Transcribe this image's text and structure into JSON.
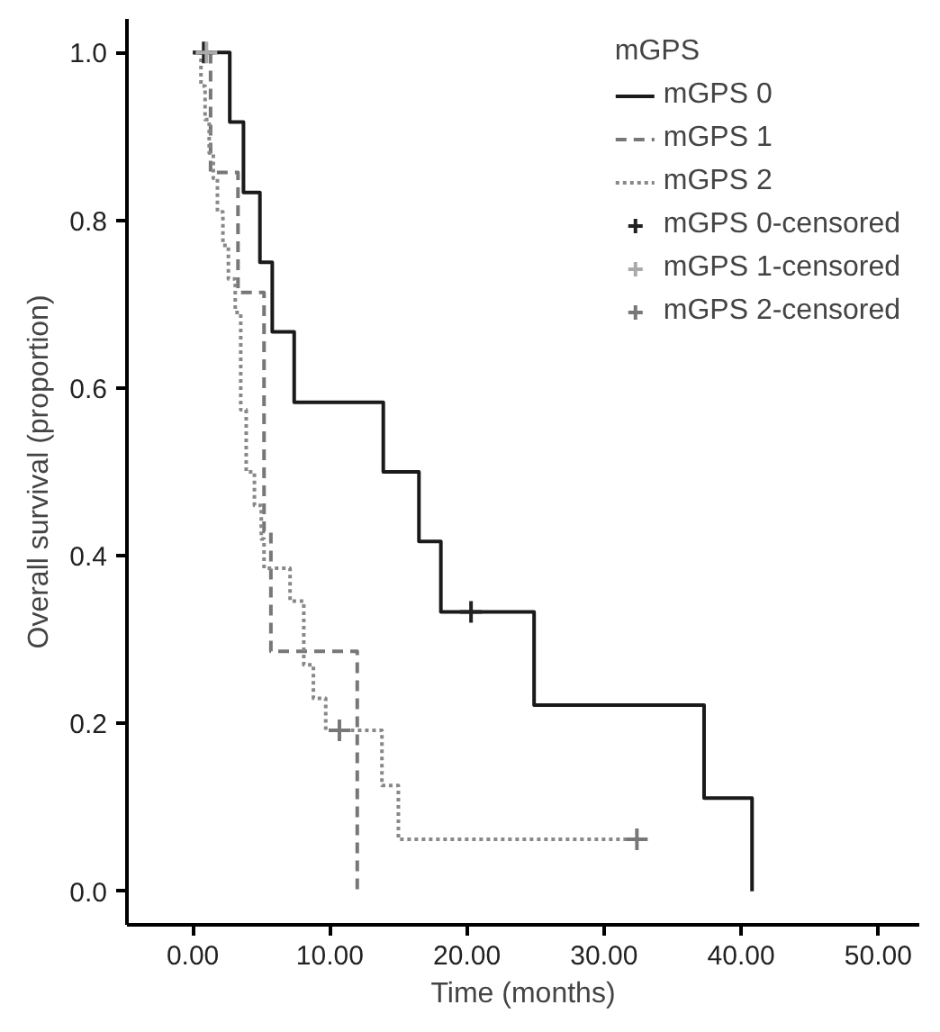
{
  "chart_data": {
    "type": "step",
    "xlabel": "Time (months)",
    "ylabel": "Overall survival (proportion)",
    "legend_title": "mGPS",
    "legend": "top right",
    "grid": false,
    "xlim": [
      -4.8,
      53
    ],
    "ylim": [
      -0.04,
      1.04
    ],
    "xticks": [
      {
        "value": 0,
        "label": "0.00"
      },
      {
        "value": 10,
        "label": "10.00"
      },
      {
        "value": 20,
        "label": "20.00"
      },
      {
        "value": 30,
        "label": "30.00"
      },
      {
        "value": 40,
        "label": "40.00"
      },
      {
        "value": 50,
        "label": "50.00"
      }
    ],
    "yticks": [
      {
        "value": 0,
        "label": "0.0"
      },
      {
        "value": 0.2,
        "label": "0.2"
      },
      {
        "value": 0.4,
        "label": "0.4"
      },
      {
        "value": 0.6,
        "label": "0.6"
      },
      {
        "value": 0.8,
        "label": "0.8"
      },
      {
        "value": 1.0,
        "label": "1.0"
      }
    ],
    "series": [
      {
        "name": "mGPS 0",
        "line_style": "solid",
        "color": "#1a1a1a",
        "x": [
          0,
          2.7,
          3.7,
          4.9,
          5.8,
          7.4,
          13.9,
          16.5,
          18.1,
          24.9,
          37.3,
          40.8
        ],
        "values": [
          1.0,
          0.917,
          0.833,
          0.75,
          0.667,
          0.583,
          0.5,
          0.417,
          0.333,
          0.222,
          0.111,
          0.0
        ]
      },
      {
        "name": "mGPS 1",
        "line_style": "dashed",
        "color": "#777777",
        "x": [
          0,
          1.3,
          3.3,
          5.2,
          5.7,
          12.0
        ],
        "values": [
          1.0,
          0.857,
          0.714,
          0.429,
          0.286,
          0.0
        ]
      },
      {
        "name": "mGPS 2",
        "line_style": "dotted",
        "color": "#888888",
        "x": [
          0,
          0.6,
          0.9,
          1.2,
          1.5,
          1.8,
          2.2,
          2.6,
          3.1,
          3.5,
          3.9,
          4.5,
          5.0,
          5.2,
          7.1,
          8.1,
          8.8,
          9.7,
          13.8,
          15.0,
          32.4
        ],
        "values": [
          1.0,
          0.96,
          0.92,
          0.88,
          0.85,
          0.81,
          0.77,
          0.73,
          0.69,
          0.574,
          0.5,
          0.46,
          0.42,
          0.385,
          0.346,
          0.27,
          0.23,
          0.192,
          0.126,
          0.062,
          0.062
        ]
      },
      {
        "name": "mGPS 0-censored",
        "type": "scatter",
        "marker": "cross",
        "color": "#222222",
        "x": [
          0.8,
          20.3
        ],
        "values": [
          1.0,
          0.333
        ]
      },
      {
        "name": "mGPS 1-censored",
        "type": "scatter",
        "marker": "cross",
        "color": "#aaaaaa",
        "x": [
          1.0
        ],
        "values": [
          1.0
        ]
      },
      {
        "name": "mGPS 2-censored",
        "type": "scatter",
        "marker": "cross",
        "color": "#777777",
        "x": [
          10.7,
          32.4
        ],
        "values": [
          0.192,
          0.062
        ]
      }
    ]
  }
}
